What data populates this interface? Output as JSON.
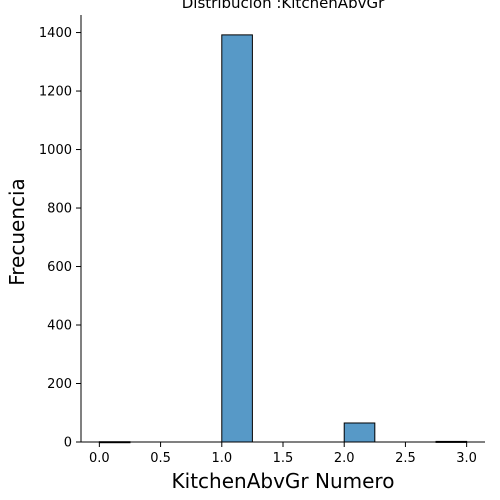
{
  "chart_data": {
    "type": "bar",
    "title": "Distribución :KitchenAbvGr",
    "xlabel": "KitchenAbvGr Numero",
    "ylabel": "Frecuencia",
    "xlim": [
      -0.15,
      3.15
    ],
    "ylim": [
      0,
      1460
    ],
    "xticks": [
      "0.0",
      "0.5",
      "1.0",
      "1.5",
      "2.0",
      "2.5",
      "3.0"
    ],
    "xtick_values": [
      0,
      0.5,
      1,
      1.5,
      2,
      2.5,
      3
    ],
    "yticks": [
      "0",
      "200",
      "400",
      "600",
      "800",
      "1000",
      "1200",
      "1400"
    ],
    "ytick_values": [
      0,
      200,
      400,
      600,
      800,
      1000,
      1200,
      1400
    ],
    "bins": [
      {
        "x0": 0.0,
        "x1": 0.25,
        "count": 1
      },
      {
        "x0": 0.25,
        "x1": 0.5,
        "count": 0
      },
      {
        "x0": 0.5,
        "x1": 0.75,
        "count": 0
      },
      {
        "x0": 0.75,
        "x1": 1.0,
        "count": 0
      },
      {
        "x0": 1.0,
        "x1": 1.25,
        "count": 1392
      },
      {
        "x0": 1.25,
        "x1": 1.5,
        "count": 0
      },
      {
        "x0": 1.5,
        "x1": 1.75,
        "count": 0
      },
      {
        "x0": 1.75,
        "x1": 2.0,
        "count": 0
      },
      {
        "x0": 2.0,
        "x1": 2.25,
        "count": 65
      },
      {
        "x0": 2.25,
        "x1": 2.5,
        "count": 0
      },
      {
        "x0": 2.5,
        "x1": 2.75,
        "count": 0
      },
      {
        "x0": 2.75,
        "x1": 3.0,
        "count": 2
      }
    ],
    "bar_color": "#5799c7",
    "edge_color": "#000000",
    "grid": false,
    "spines": "left-bottom"
  }
}
